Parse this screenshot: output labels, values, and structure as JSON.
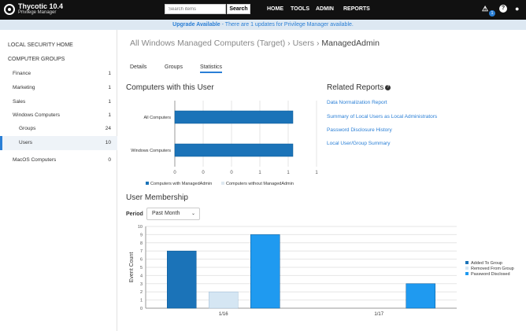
{
  "app": {
    "title": "Thycotic 10.4",
    "subtitle": "Privilege Manager"
  },
  "search": {
    "placeholder": "Search items",
    "button": "Search"
  },
  "nav": [
    "HOME",
    "TOOLS",
    "ADMIN",
    "REPORTS"
  ],
  "alerts": {
    "count": "1"
  },
  "banner": {
    "strong": "Upgrade Available",
    "text": " - There are 1 updates for Privilege Manager available."
  },
  "sidebar": {
    "local_security": "LOCAL SECURITY HOME",
    "groups_heading": "COMPUTER GROUPS",
    "items": [
      {
        "label": "Finance",
        "count": "1"
      },
      {
        "label": "Marketing",
        "count": "1"
      },
      {
        "label": "Sales",
        "count": "1"
      },
      {
        "label": "Windows Computers",
        "count": "1"
      },
      {
        "label": "Groups",
        "count": "24"
      },
      {
        "label": "Users",
        "count": "10"
      },
      {
        "label": "MacOS Computers",
        "count": "0"
      }
    ]
  },
  "breadcrumb": {
    "part1": "All Windows Managed Computers (Target)",
    "sep": "›",
    "part2": "Users",
    "current": "ManagedAdmin"
  },
  "tabs": [
    "Details",
    "Groups",
    "Statistics"
  ],
  "computers_title": "Computers with this User",
  "related": {
    "title": "Related Reports",
    "links": [
      "Data Normalization Report",
      "Summary of Local Users as Local Administrators",
      "Password Disclosure History",
      "Local User/Group Summary"
    ]
  },
  "membership_title": "User Membership",
  "period": {
    "label": "Period",
    "value": "Past Month"
  },
  "colors": {
    "accent": "#2a7fd6",
    "added": "#1b73b8",
    "removed": "#d5e6f3",
    "disclosed": "#1f9af0"
  },
  "chart_data": [
    {
      "type": "bar",
      "orientation": "horizontal",
      "categories": [
        "All Computers",
        "Windows Computers"
      ],
      "series": [
        {
          "name": "Computers with ManagedAdmin",
          "values": [
            1,
            1
          ]
        },
        {
          "name": "Computers without ManagedAdmin",
          "values": [
            0,
            0
          ]
        }
      ],
      "x_ticks": [
        "0",
        "0",
        "0",
        "1",
        "1",
        "1"
      ],
      "xlim": [
        0,
        1.2
      ],
      "legend": "bottom"
    },
    {
      "type": "bar",
      "categories": [
        "1/16",
        "1/17"
      ],
      "series": [
        {
          "name": "Added To Group",
          "values": [
            7,
            0
          ]
        },
        {
          "name": "Removed From Group",
          "values": [
            2,
            0
          ]
        },
        {
          "name": "Password Disclosed",
          "values": [
            9,
            3
          ]
        }
      ],
      "ylabel": "Event Count",
      "ylim": [
        0,
        10
      ],
      "y_ticks": [
        "0",
        "1",
        "2",
        "3",
        "4",
        "5",
        "6",
        "7",
        "8",
        "9",
        "10"
      ],
      "legend": "right"
    }
  ]
}
